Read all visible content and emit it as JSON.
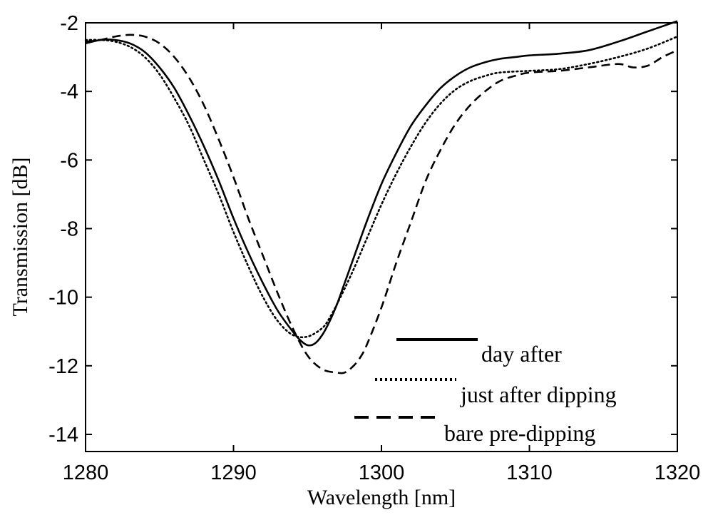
{
  "chart_data": {
    "type": "line",
    "title": "",
    "xlabel": "Wavelength [nm]",
    "ylabel": "Transmission [dB]",
    "xlim": [
      1280,
      1320
    ],
    "ylim": [
      -14.5,
      -2
    ],
    "xticks": [
      1280,
      1290,
      1300,
      1310,
      1320
    ],
    "yticks": [
      -2,
      -4,
      -6,
      -8,
      -10,
      -12,
      -14
    ],
    "grid": false,
    "legend_position": "bottom-right",
    "series": [
      {
        "name": "day after",
        "style": "solid",
        "x": [
          1280,
          1281,
          1282,
          1283,
          1284,
          1285,
          1286,
          1287,
          1288,
          1289,
          1290,
          1291,
          1292,
          1293,
          1294,
          1294.5,
          1295,
          1295.5,
          1296,
          1296.5,
          1297,
          1297.5,
          1298,
          1299,
          1300,
          1301,
          1302,
          1303,
          1304,
          1305,
          1306,
          1307,
          1308,
          1309,
          1310,
          1312,
          1314,
          1316,
          1318,
          1320
        ],
        "y": [
          -2.6,
          -2.5,
          -2.5,
          -2.6,
          -2.85,
          -3.3,
          -3.9,
          -4.7,
          -5.6,
          -6.6,
          -7.7,
          -8.7,
          -9.6,
          -10.4,
          -11.0,
          -11.25,
          -11.4,
          -11.35,
          -11.1,
          -10.7,
          -10.2,
          -9.6,
          -9.0,
          -7.8,
          -6.7,
          -5.8,
          -5.0,
          -4.4,
          -3.9,
          -3.55,
          -3.3,
          -3.15,
          -3.05,
          -3.0,
          -2.95,
          -2.9,
          -2.8,
          -2.55,
          -2.25,
          -1.95
        ]
      },
      {
        "name": "just after dipping",
        "style": "dotted",
        "x": [
          1280,
          1281,
          1282,
          1283,
          1284,
          1285,
          1286,
          1287,
          1288,
          1289,
          1290,
          1291,
          1292,
          1293,
          1294,
          1295,
          1296,
          1296.5,
          1297,
          1298,
          1299,
          1300,
          1301,
          1302,
          1303,
          1304,
          1305,
          1306,
          1307,
          1308,
          1310,
          1312,
          1314,
          1316,
          1318,
          1320
        ],
        "y": [
          -2.5,
          -2.5,
          -2.55,
          -2.7,
          -3.0,
          -3.5,
          -4.2,
          -5.0,
          -6.0,
          -7.0,
          -8.1,
          -9.1,
          -10.0,
          -10.7,
          -11.1,
          -11.15,
          -10.9,
          -10.6,
          -10.2,
          -9.3,
          -8.3,
          -7.3,
          -6.4,
          -5.6,
          -4.9,
          -4.35,
          -3.95,
          -3.7,
          -3.55,
          -3.45,
          -3.4,
          -3.35,
          -3.2,
          -3.0,
          -2.75,
          -2.4
        ]
      },
      {
        "name": "bare pre-dipping",
        "style": "dashed",
        "x": [
          1280,
          1281,
          1282,
          1283,
          1284,
          1285,
          1286,
          1287,
          1288,
          1289,
          1290,
          1291,
          1292,
          1293,
          1294,
          1295,
          1296,
          1297,
          1297.5,
          1298,
          1298.5,
          1299,
          1300,
          1301,
          1302,
          1303,
          1304,
          1305,
          1306,
          1307,
          1308,
          1309,
          1310,
          1312,
          1314,
          1316,
          1317,
          1318,
          1319,
          1320
        ],
        "y": [
          -2.55,
          -2.5,
          -2.4,
          -2.35,
          -2.4,
          -2.6,
          -3.0,
          -3.6,
          -4.4,
          -5.4,
          -6.5,
          -7.7,
          -8.8,
          -9.9,
          -10.9,
          -11.7,
          -12.1,
          -12.2,
          -12.2,
          -12.05,
          -11.8,
          -11.4,
          -10.3,
          -9.0,
          -7.8,
          -6.6,
          -5.7,
          -4.95,
          -4.4,
          -4.0,
          -3.7,
          -3.55,
          -3.45,
          -3.4,
          -3.3,
          -3.2,
          -3.3,
          -3.25,
          -3.0,
          -2.8
        ]
      }
    ]
  }
}
